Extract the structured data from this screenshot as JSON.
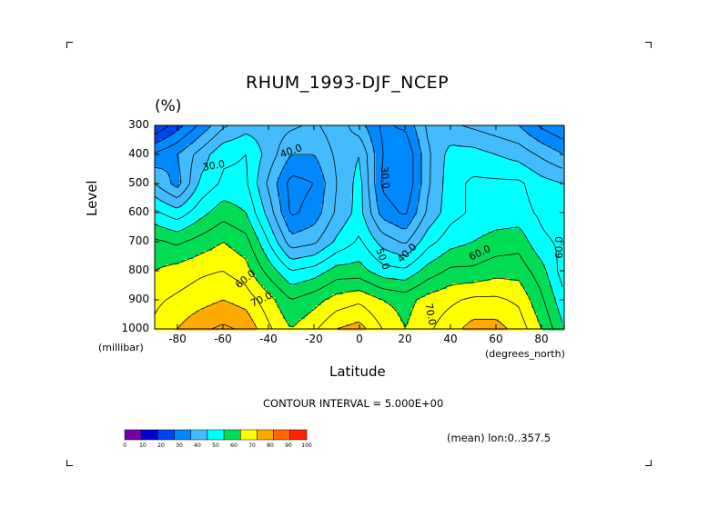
{
  "chart_data": {
    "type": "heatmap",
    "title": "RHUM_1993-DJF_NCEP",
    "units": "(%)",
    "xlabel": "Latitude",
    "xunits": "(degrees_north)",
    "ylabel": "Level",
    "yunits": "(millibar)",
    "xlim": [
      -90,
      90
    ],
    "ylim": [
      1000,
      300
    ],
    "xticks": [
      -80,
      -60,
      -40,
      -20,
      0,
      20,
      40,
      60,
      80
    ],
    "xtick_labels": [
      "-80",
      "-60",
      "-40",
      "-20",
      "0",
      "20",
      "40",
      "60",
      "80"
    ],
    "yticks": [
      300,
      400,
      500,
      600,
      700,
      800,
      900,
      1000
    ],
    "ytick_labels": [
      "300",
      "400",
      "500",
      "600",
      "700",
      "800",
      "900",
      "1000"
    ],
    "contour_interval_label": "CONTOUR INTERVAL = 5.000E+00",
    "mean_label": "(mean) lon:0..357.5",
    "colorbar": {
      "levels": [
        0,
        10,
        20,
        30,
        40,
        50,
        60,
        70,
        80,
        90,
        100
      ],
      "level_labels": [
        "0",
        "10",
        "20",
        "30",
        "40",
        "50",
        "60",
        "70",
        "80",
        "90",
        "100"
      ],
      "colors": [
        "#7700aa",
        "#0000cc",
        "#0044ee",
        "#0088ff",
        "#44bbff",
        "#00ffff",
        "#00dd55",
        "#ffff00",
        "#ffaa00",
        "#ff6600",
        "#ff2200"
      ]
    },
    "lat": [
      -90,
      -80,
      -70,
      -60,
      -50,
      -40,
      -30,
      -20,
      -10,
      0,
      10,
      20,
      30,
      40,
      50,
      60,
      70,
      80,
      90
    ],
    "levels": [
      300,
      400,
      500,
      600,
      700,
      800,
      900,
      1000
    ],
    "values": [
      [
        20,
        28,
        36,
        44,
        48,
        48,
        46,
        44,
        48,
        42,
        34,
        36,
        46,
        46,
        44,
        42,
        40,
        34,
        30
      ],
      [
        36,
        40,
        47,
        54,
        55,
        48,
        40,
        40,
        46,
        50,
        35,
        30,
        44,
        52,
        52,
        50,
        48,
        44,
        40
      ],
      [
        45,
        38,
        51,
        56,
        56,
        44,
        33,
        35,
        45,
        52,
        34,
        30,
        44,
        53,
        56,
        56,
        56,
        52,
        50
      ],
      [
        56,
        52,
        58,
        63,
        60,
        48,
        34,
        37,
        46,
        52,
        38,
        34,
        46,
        53,
        56,
        57,
        57,
        54,
        52
      ],
      [
        66,
        64,
        67,
        70,
        67,
        55,
        42,
        44,
        51,
        56,
        48,
        44,
        53,
        58,
        60,
        62,
        63,
        56,
        54
      ],
      [
        70,
        72,
        74,
        75,
        72,
        63,
        55,
        57,
        62,
        62,
        57,
        56,
        62,
        66,
        66,
        68,
        68,
        62,
        52
      ],
      [
        74,
        76,
        78,
        80,
        78,
        72,
        65,
        68,
        72,
        74,
        70,
        68,
        72,
        74,
        76,
        76,
        74,
        66,
        56
      ],
      [
        76,
        80,
        84,
        86,
        84,
        76,
        70,
        74,
        80,
        82,
        75,
        70,
        74,
        78,
        82,
        82,
        78,
        70,
        60
      ]
    ],
    "contour_labels": [
      {
        "text": "30.0",
        "lat": -64,
        "lev": 440,
        "rot": -10
      },
      {
        "text": "40.0",
        "lat": -30,
        "lev": 390,
        "rot": -20
      },
      {
        "text": "30.0",
        "lat": 11,
        "lev": 480,
        "rot": 85
      },
      {
        "text": "50.0",
        "lat": 10,
        "lev": 760,
        "rot": 70
      },
      {
        "text": "40.0",
        "lat": 21,
        "lev": 740,
        "rot": -45
      },
      {
        "text": "60.0",
        "lat": 53,
        "lev": 740,
        "rot": -25
      },
      {
        "text": "60.0",
        "lat": 88,
        "lev": 720,
        "rot": -90
      },
      {
        "text": "60.0",
        "lat": -50,
        "lev": 830,
        "rot": -40
      },
      {
        "text": "70.0",
        "lat": -43,
        "lev": 900,
        "rot": -25
      },
      {
        "text": "70.0",
        "lat": 31,
        "lev": 950,
        "rot": 80
      }
    ]
  }
}
